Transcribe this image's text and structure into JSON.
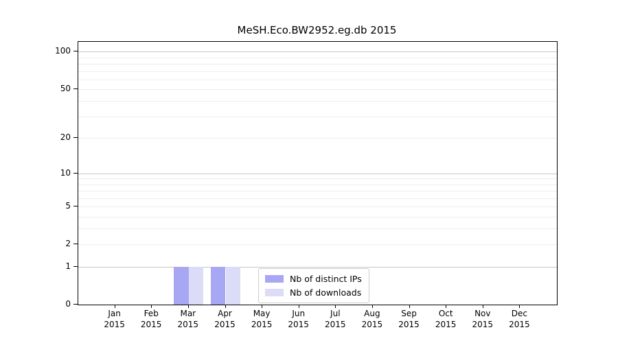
{
  "chart_data": {
    "type": "bar",
    "title": "MeSH.Eco.BW2952.eg.db 2015",
    "categories": [
      "Jan",
      "Feb",
      "Mar",
      "Apr",
      "May",
      "Jun",
      "Jul",
      "Aug",
      "Sep",
      "Oct",
      "Nov",
      "Dec"
    ],
    "x_tick_year": "2015",
    "series": [
      {
        "name": "Nb of distinct IPs",
        "color": "#a7a7f3",
        "values": [
          0,
          0,
          1,
          1,
          0,
          0,
          0,
          0,
          0,
          0,
          0,
          0
        ]
      },
      {
        "name": "Nb of downloads",
        "color": "#dcdcf9",
        "values": [
          0,
          0,
          1,
          1,
          0,
          0,
          0,
          0,
          0,
          0,
          0,
          0
        ]
      }
    ],
    "y_scale": "log1p",
    "y_ticks": [
      0,
      1,
      2,
      5,
      10,
      20,
      50,
      100
    ],
    "ylim": [
      0,
      120
    ],
    "grid": {
      "major_values": [
        1,
        10,
        100
      ],
      "minor_values": [
        2,
        3,
        4,
        5,
        6,
        7,
        8,
        9,
        20,
        30,
        40,
        50,
        60,
        70,
        80,
        90
      ],
      "major_color": "#c6c6c6",
      "minor_color": "#ededed"
    },
    "legend_position": "inside-bottom-center",
    "axis_color": "#000000",
    "background_color": "#ffffff"
  }
}
